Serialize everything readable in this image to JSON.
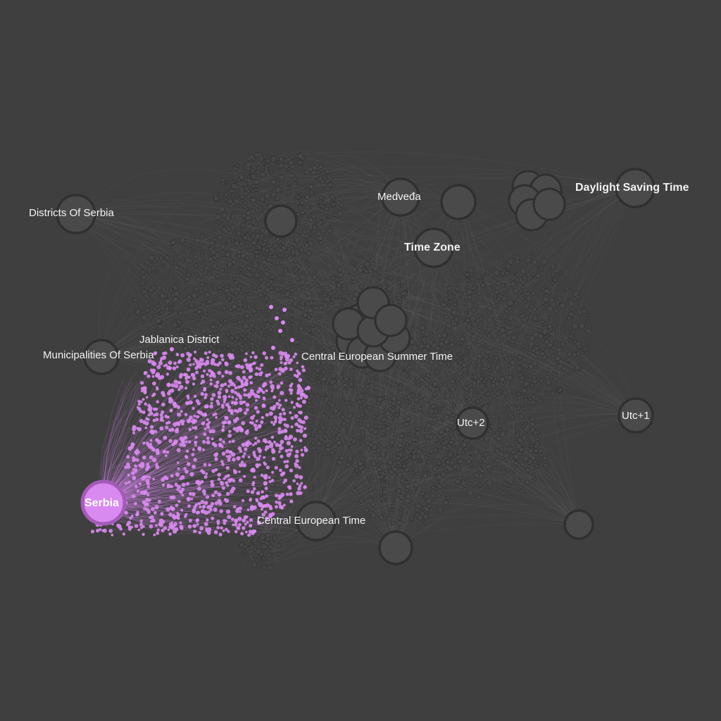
{
  "graph": {
    "background": "#3f3f3f",
    "node_color": "#4a4a4a",
    "node_stroke": "#303030",
    "edge_color": "#6a6a6a",
    "highlight_color": "#d98af0",
    "highlight_stroke": "#a45bb8",
    "labels": {
      "districts": "Districts Of Serbia",
      "medveda": "Medveđa",
      "dst": "Daylight Saving Time",
      "timezone": "Time Zone",
      "jablanica": "Jablanica District",
      "municipalities": "Municipalities Of Serbia",
      "cest": "Central European Summer Time",
      "utc2": "Utc+2",
      "utc1": "Utc+1",
      "serbia": "Serbia",
      "cet": "Central European Time"
    }
  }
}
